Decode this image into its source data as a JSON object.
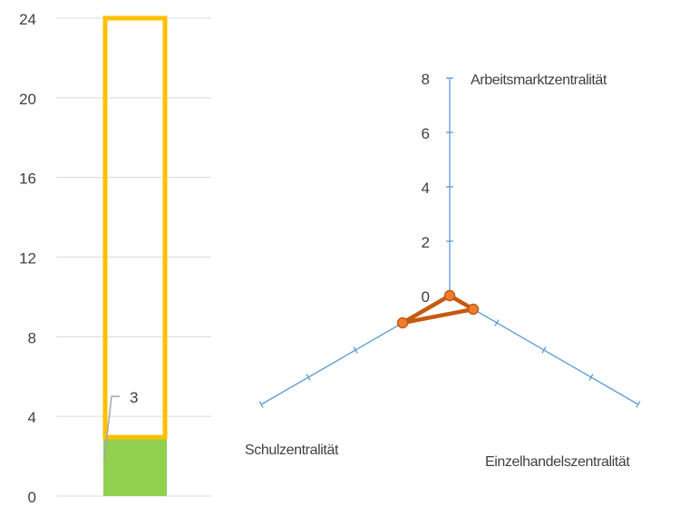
{
  "colors": {
    "grid": "#d9d9d9",
    "bar_fill": "#92d050",
    "bar_outline": "#ffc000",
    "radar_axis": "#5b9bd5",
    "radar_line": "#c55a11",
    "radar_marker": "#ed7d31",
    "text": "#404040",
    "leader_line": "#a6a6a6"
  },
  "chart_data": [
    {
      "type": "bar",
      "title": "",
      "xlabel": "",
      "ylabel": "",
      "ylim": [
        0,
        24
      ],
      "y_ticks": [
        0,
        4,
        8,
        12,
        16,
        20,
        24
      ],
      "y_tick_labels": [
        "0",
        "4",
        "8",
        "12",
        "16",
        "20",
        "24"
      ],
      "grid": true,
      "series": [
        {
          "values": [
            3
          ],
          "style": "filled",
          "color": "#92d050"
        },
        {
          "values": [
            24
          ],
          "style": "outline",
          "color": "#ffc000"
        }
      ],
      "data_labels": [
        {
          "series": 0,
          "index": 0,
          "text": "3"
        }
      ]
    },
    {
      "type": "radar",
      "title": "",
      "categories": [
        "Arbeitsmarktzentralität",
        "Einzelhandelszentralität",
        "Schulzentralität"
      ],
      "rlim": [
        0,
        8
      ],
      "r_ticks": [
        0,
        2,
        4,
        6,
        8
      ],
      "r_tick_labels": [
        "0",
        "2",
        "4",
        "6",
        "8"
      ],
      "series": [
        {
          "values": [
            0,
            1,
            2
          ]
        }
      ],
      "grid": false
    }
  ]
}
